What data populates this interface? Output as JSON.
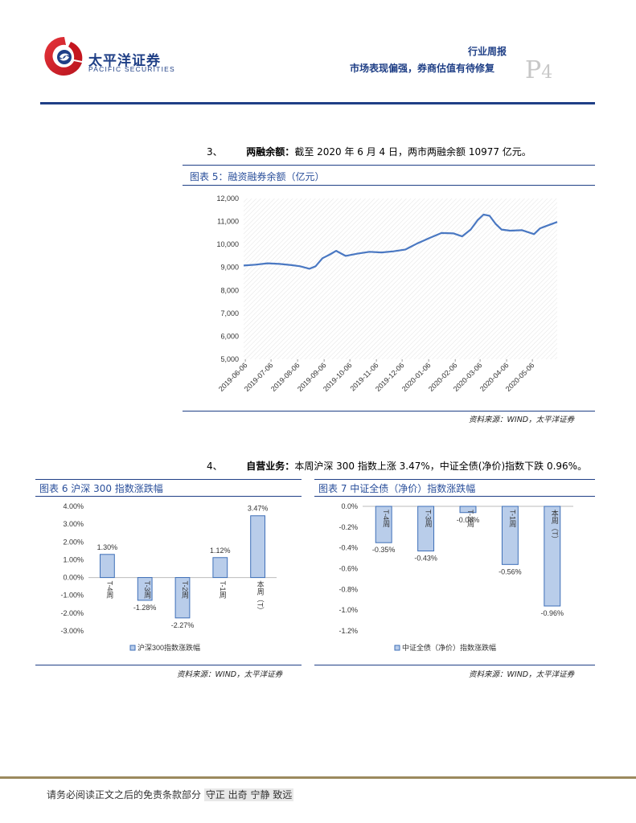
{
  "header": {
    "logo_cn": "太平洋证券",
    "logo_en": "PACIFIC SECURITIES",
    "report_type": "行业周报",
    "report_title": "市场表现偏强，券商估值有待修复",
    "page_number_letter": "P",
    "page_number": "4"
  },
  "section3": {
    "index": "3、",
    "label": "两融余额：",
    "text": "截至 2020 年 6 月 4 日，两市两融余额 10977 亿元。"
  },
  "section4": {
    "index": "4、",
    "label": "自营业务：",
    "text": "本周沪深 300 指数上涨 3.47%，中证全债(净价)指数下跌 0.96%。"
  },
  "figure5": {
    "title": "图表 5：融资融券余额（亿元）",
    "source": "资料来源：WIND，太平洋证券"
  },
  "figure6": {
    "title": "图表 6 沪深 300 指数涨跌幅",
    "source": "资料来源：WIND，太平洋证券"
  },
  "figure7": {
    "title": "图表 7 中证全债（净价）指数涨跌幅",
    "source": "资料来源：WIND，太平洋证券"
  },
  "footer": {
    "disclaimer": "请务必阅读正文之后的免责条款部分",
    "motto": "守正 出奇 宁静 致远"
  },
  "colors": {
    "brand_blue": "#1f3f86",
    "line": "#4a78c2",
    "bar_fill": "#b9cdea",
    "bar_stroke": "#3e6fb8",
    "rule": "#1f3f86",
    "footer_rule": "#9b8a5e"
  },
  "chart_data": [
    {
      "id": "margin-balance",
      "type": "line",
      "title": "",
      "xlabel": "",
      "ylabel": "",
      "ylim": [
        5000,
        12000
      ],
      "yticks": [
        5000,
        6000,
        7000,
        8000,
        9000,
        10000,
        11000,
        12000
      ],
      "ytick_labels": [
        "5,000",
        "6,000",
        "7,000",
        "8,000",
        "9,000",
        "10,000",
        "11,000",
        "12,000"
      ],
      "x_tick_labels": [
        "2019-06-06",
        "2019-07-06",
        "2019-08-06",
        "2019-09-06",
        "2019-10-06",
        "2019-11-06",
        "2019-12-06",
        "2020-01-06",
        "2020-02-06",
        "2020-03-06",
        "2020-04-06",
        "2020-05-06"
      ],
      "x": [
        "2019-06-04",
        "2019-06-18",
        "2019-07-02",
        "2019-07-16",
        "2019-07-30",
        "2019-08-09",
        "2019-08-20",
        "2019-08-27",
        "2019-09-04",
        "2019-09-12",
        "2019-09-20",
        "2019-10-01",
        "2019-10-15",
        "2019-10-29",
        "2019-11-12",
        "2019-11-26",
        "2019-12-10",
        "2019-12-24",
        "2020-01-07",
        "2020-01-21",
        "2020-02-04",
        "2020-02-14",
        "2020-02-24",
        "2020-03-03",
        "2020-03-10",
        "2020-03-17",
        "2020-03-24",
        "2020-03-31",
        "2020-04-10",
        "2020-04-24",
        "2020-05-08",
        "2020-05-15",
        "2020-05-22",
        "2020-06-04"
      ],
      "series": [
        {
          "name": "",
          "values": [
            9080,
            9120,
            9180,
            9150,
            9100,
            9050,
            8940,
            9050,
            9400,
            9550,
            9720,
            9500,
            9600,
            9680,
            9650,
            9700,
            9780,
            10050,
            10280,
            10500,
            10480,
            10350,
            10650,
            11050,
            11300,
            11250,
            10900,
            10650,
            10600,
            10620,
            10450,
            10700,
            10800,
            10977
          ]
        }
      ],
      "grid": false,
      "legend": "none"
    },
    {
      "id": "csi300-change",
      "type": "bar",
      "title": "",
      "categories": [
        "T-4周",
        "T-3周",
        "T-2周",
        "T-1周",
        "本周（T）"
      ],
      "series": [
        {
          "name": "沪深300指数涨跌幅",
          "values": [
            1.3,
            -1.28,
            -2.27,
            1.12,
            3.47
          ]
        }
      ],
      "value_labels": [
        "1.30%",
        "-1.28%",
        "-2.27%",
        "1.12%",
        "3.47%"
      ],
      "ylim": [
        -3,
        4
      ],
      "yticks": [
        -3,
        -2,
        -1,
        0,
        1,
        2,
        3,
        4
      ],
      "ytick_labels": [
        "-3.00%",
        "-2.00%",
        "-1.00%",
        "0.00%",
        "1.00%",
        "2.00%",
        "3.00%",
        "4.00%"
      ],
      "legend": "bottom"
    },
    {
      "id": "bond-index-change",
      "type": "bar",
      "title": "",
      "categories": [
        "T-4周",
        "T-3周",
        "T-2周",
        "T-1周",
        "本周（T）"
      ],
      "series": [
        {
          "name": "中证全债（净价）指数涨跌幅",
          "values": [
            -0.35,
            -0.43,
            -0.06,
            -0.56,
            -0.96
          ]
        }
      ],
      "value_labels": [
        "-0.35%",
        "-0.43%",
        "-0.06%",
        "-0.56%",
        "-0.96%"
      ],
      "ylim": [
        -1.2,
        0
      ],
      "yticks": [
        -1.2,
        -1.0,
        -0.8,
        -0.6,
        -0.4,
        -0.2,
        0.0
      ],
      "ytick_labels": [
        "-1.2%",
        "-1.0%",
        "-0.8%",
        "-0.6%",
        "-0.4%",
        "-0.2%",
        "0.0%"
      ],
      "legend": "bottom"
    }
  ]
}
